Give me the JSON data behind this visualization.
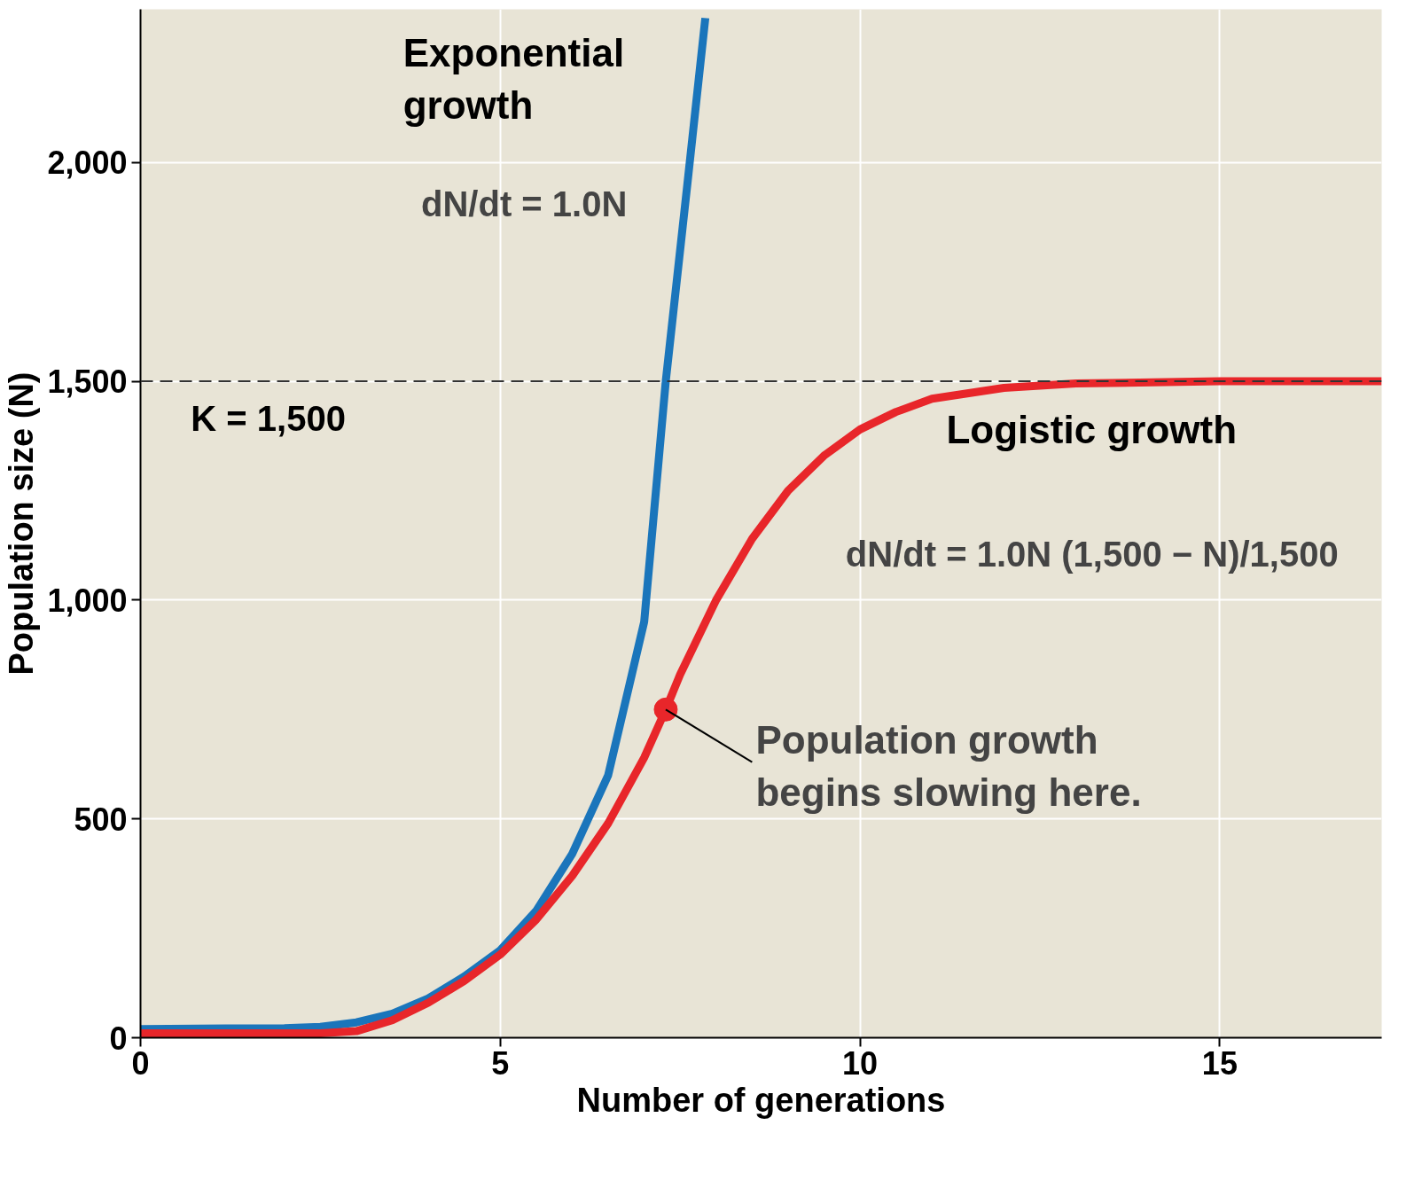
{
  "chart_data": {
    "type": "line",
    "xlabel": "Number of generations",
    "ylabel": "Population size (N)",
    "xlim": [
      0,
      17.25
    ],
    "ylim": [
      0,
      2350
    ],
    "xticks": [
      0,
      5,
      10,
      15
    ],
    "yticks": [
      0,
      {
        "value": 500,
        "label": "500"
      },
      {
        "value": 1000,
        "label": "1,000"
      },
      {
        "value": 1500,
        "label": "1,500"
      },
      {
        "value": 2000,
        "label": "2,000"
      }
    ],
    "grid": true,
    "line_style": "solid",
    "marker": "none",
    "series": [
      {
        "name": "Exponential growth",
        "color": "#1a75bb",
        "x": [
          0,
          2,
          2.5,
          3,
          3.5,
          4,
          4.5,
          5,
          5.5,
          6,
          6.5,
          7,
          7.3,
          7.6,
          7.85
        ],
        "values": [
          20,
          22,
          25,
          35,
          55,
          90,
          140,
          200,
          290,
          420,
          600,
          950,
          1500,
          1950,
          2330
        ]
      },
      {
        "name": "Logistic growth",
        "color": "#e8262a",
        "x": [
          0,
          2.5,
          3,
          3.5,
          4,
          4.5,
          5,
          5.5,
          6,
          6.5,
          7,
          7.3,
          7.5,
          8,
          8.5,
          9,
          9.5,
          10,
          10.5,
          11,
          12,
          13,
          15,
          17.25
        ],
        "values": [
          10,
          10,
          15,
          40,
          80,
          130,
          190,
          270,
          370,
          490,
          640,
          750,
          830,
          1000,
          1140,
          1250,
          1330,
          1390,
          1430,
          1460,
          1485,
          1495,
          1500,
          1500
        ]
      },
      {
        "type": "scatter",
        "marker": "circle",
        "color": "#e8262a",
        "x": [
          7.3
        ],
        "values": [
          750
        ]
      }
    ],
    "ref_lines": [
      {
        "axis": "y",
        "value": 1500,
        "label": "K = 1,500",
        "line_style": "dashed",
        "color": "#333333"
      }
    ],
    "annotations": [
      "dN/dt = 1.0N",
      "dN/dt = 1.0N (1,500 − N)/1,500",
      {
        "text": "Population growth begins slowing here.",
        "x": 7.3,
        "y": 750
      }
    ]
  }
}
